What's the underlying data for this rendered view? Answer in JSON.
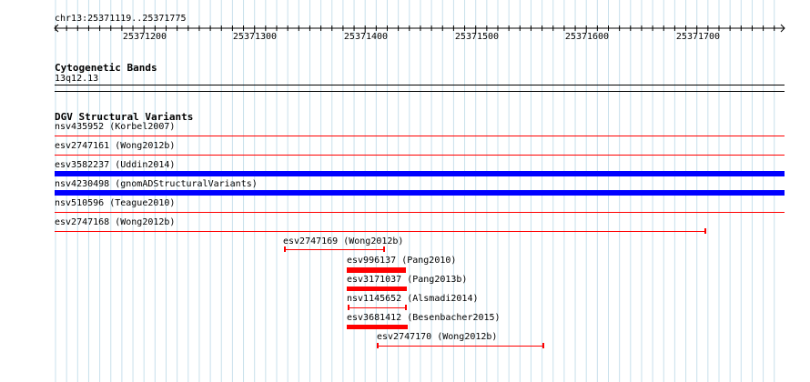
{
  "ruler": {
    "range_label": "chr13:25371119..25371775",
    "ticks": [
      "25371200",
      "25371300",
      "25371400",
      "25371500",
      "25371600",
      "25371700"
    ]
  },
  "cytoband": {
    "title": "Cytogenetic Bands",
    "band": "13q12.13"
  },
  "dgv": {
    "title": "DGV Structural Variants",
    "full_width_features": [
      {
        "label": "nsv435952 (Korbel2007)",
        "style": "thin-red"
      },
      {
        "label": "esv2747161 (Wong2012b)",
        "style": "thin-red"
      },
      {
        "label": "esv3582237 (Uddin2014)",
        "style": "thick-blue"
      },
      {
        "label": "nsv4230498 (gnomADStructuralVariants)",
        "style": "thick-blue"
      },
      {
        "label": "nsv510596 (Teague2010)",
        "style": "thin-red"
      },
      {
        "label": "esv2747168 (Wong2012b)",
        "style": "thin-red-capped"
      }
    ],
    "partial_features": [
      {
        "label": "esv2747169 (Wong2012b)",
        "style": "thin-capped"
      },
      {
        "label": "esv996137 (Pang2010)",
        "style": "thick"
      },
      {
        "label": "esv3171037 (Pang2013b)",
        "style": "thick"
      },
      {
        "label": "nsv1145652 (Alsmadi2014)",
        "style": "thin-capped"
      },
      {
        "label": "esv3681412 (Besenbacher2015)",
        "style": "thick"
      },
      {
        "label": "esv2747170 (Wong2012b)",
        "style": "thin-capped"
      }
    ]
  }
}
